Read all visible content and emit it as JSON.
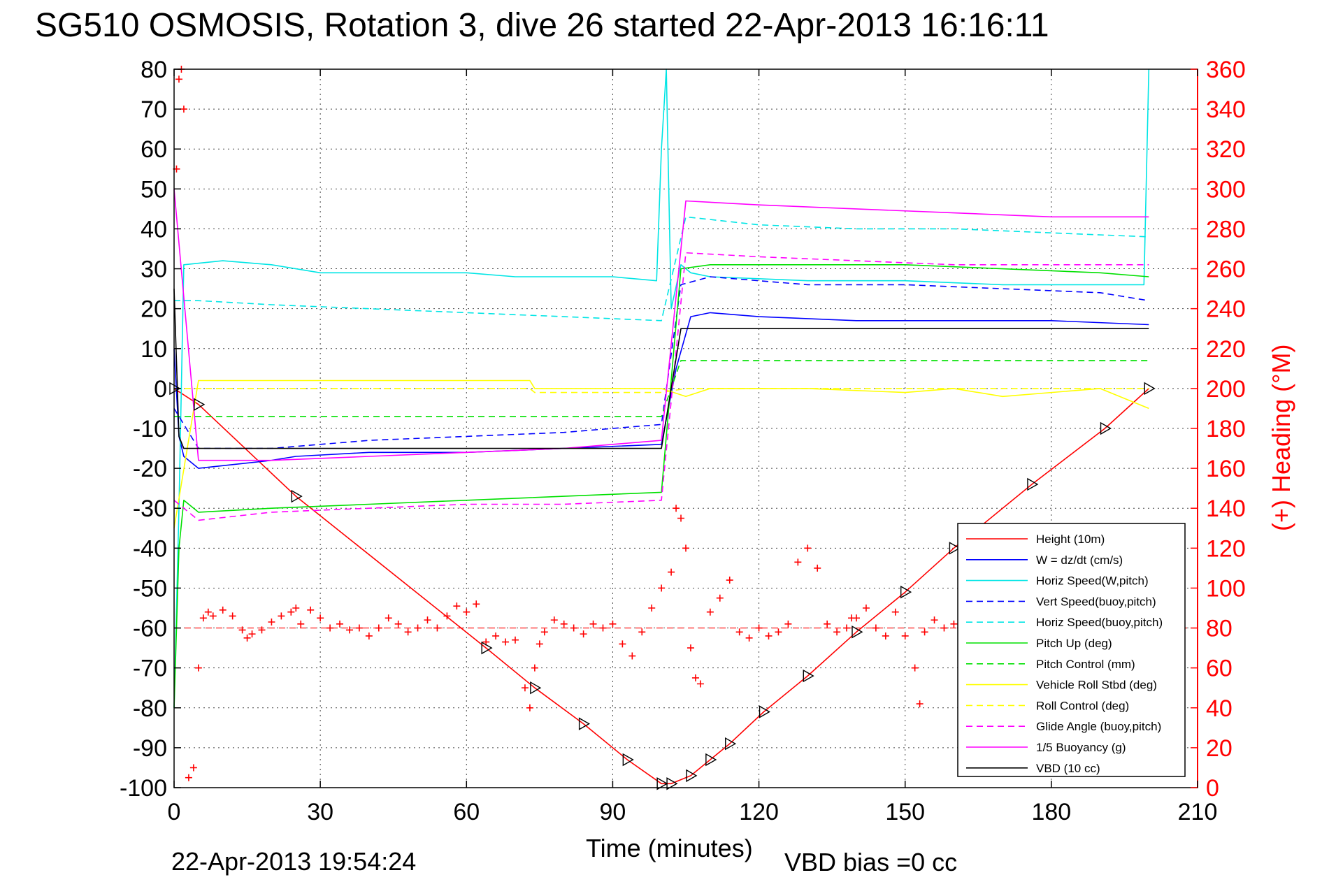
{
  "chart_data": {
    "type": "line",
    "title": "SG510 OSMOSIS, Rotation 3, dive 26 started 22-Apr-2013 16:16:11",
    "xlabel": "Time (minutes)",
    "ylabel": "",
    "y2label": "(+) Heading (°M)",
    "xlim": [
      0,
      210
    ],
    "ylim": [
      -100,
      80
    ],
    "y2lim": [
      0,
      360
    ],
    "xticks": [
      "0",
      "30",
      "60",
      "90",
      "120",
      "150",
      "180",
      "210"
    ],
    "yticks": [
      "80",
      "70",
      "60",
      "50",
      "40",
      "30",
      "20",
      "10",
      "0",
      "-10",
      "-20",
      "-30",
      "-40",
      "-50",
      "-60",
      "-70",
      "-80",
      "-90",
      "-100"
    ],
    "y2ticks": [
      "360",
      "340",
      "320",
      "300",
      "280",
      "260",
      "240",
      "220",
      "200",
      "180",
      "160",
      "140",
      "120",
      "100",
      "80",
      "60",
      "40",
      "20",
      "0"
    ],
    "grid": true,
    "legend_position": "lower-right",
    "footer_date": "22-Apr-2013 19:54:24",
    "footer_note": "VBD bias =0 cc",
    "series": [
      {
        "name": "Height (10m)",
        "color": "#ff0000",
        "style": "solid",
        "x": [
          0,
          5,
          25,
          64,
          74,
          84,
          93,
          100,
          102,
          106,
          110,
          114,
          121,
          130,
          140,
          150,
          160,
          176,
          191,
          200
        ],
        "y": [
          0,
          -4,
          -27,
          -65,
          -75,
          -84,
          -93,
          -99,
          -99,
          -97,
          -93,
          -89,
          -81,
          -72,
          -61,
          -51,
          -40,
          -24,
          -10,
          0
        ]
      },
      {
        "name": "W = dz/dt (cm/s)",
        "color": "#0000ff",
        "style": "solid",
        "x": [
          0,
          1,
          2,
          5,
          20,
          25,
          40,
          60,
          80,
          100,
          103,
          106,
          110,
          120,
          140,
          160,
          180,
          200
        ],
        "y": [
          10,
          -12,
          -17,
          -20,
          -18,
          -17,
          -16,
          -16,
          -15,
          -14,
          5,
          18,
          19,
          18,
          17,
          17,
          17,
          16
        ]
      },
      {
        "name": "Horiz Speed(W,pitch)",
        "color": "#00e5e5",
        "style": "solid",
        "x": [
          0,
          1,
          2,
          10,
          20,
          30,
          50,
          60,
          70,
          80,
          90,
          99,
          100,
          101,
          102,
          104,
          106,
          110,
          130,
          150,
          170,
          190,
          199,
          200
        ],
        "y": [
          -80,
          -30,
          31,
          32,
          31,
          29,
          29,
          29,
          28,
          28,
          28,
          27,
          60,
          80,
          20,
          31,
          29,
          28,
          27,
          27,
          26,
          26,
          26,
          80
        ]
      },
      {
        "name": "Vert Speed(buoy,pitch)",
        "color": "#0000ff",
        "style": "dashed",
        "x": [
          0,
          5,
          20,
          40,
          60,
          80,
          100,
          104,
          110,
          130,
          150,
          170,
          190,
          200
        ],
        "y": [
          -5,
          -15,
          -15,
          -13,
          -12,
          -11,
          -9,
          26,
          28,
          26,
          26,
          25,
          24,
          22
        ]
      },
      {
        "name": "Horiz Speed(buoy,pitch)",
        "color": "#00e5e5",
        "style": "dashed",
        "x": [
          0,
          5,
          20,
          40,
          60,
          80,
          100,
          105,
          120,
          140,
          160,
          180,
          200
        ],
        "y": [
          22,
          22,
          21,
          20,
          19,
          18,
          17,
          43,
          41,
          40,
          40,
          39,
          38
        ]
      },
      {
        "name": "Pitch Up (deg)",
        "color": "#00e000",
        "style": "solid",
        "x": [
          0,
          1,
          2,
          5,
          20,
          40,
          60,
          80,
          100,
          104,
          110,
          130,
          150,
          170,
          190,
          200
        ],
        "y": [
          -80,
          -40,
          -28,
          -31,
          -30,
          -29,
          -28,
          -27,
          -26,
          30,
          31,
          31,
          31,
          30,
          29,
          28
        ]
      },
      {
        "name": "Pitch Control (mm)",
        "color": "#00e000",
        "style": "dashed",
        "x": [
          0,
          5,
          100,
          104,
          200
        ],
        "y": [
          -7,
          -7,
          -7,
          7,
          7
        ]
      },
      {
        "name": "Vehicle Roll Stbd (deg)",
        "color": "#ffff00",
        "style": "solid",
        "x": [
          0,
          5,
          25,
          50,
          73,
          74,
          100,
          105,
          110,
          130,
          150,
          160,
          170,
          190,
          200
        ],
        "y": [
          -35,
          2,
          2,
          2,
          2,
          0,
          0,
          -2,
          0,
          0,
          -1,
          0,
          -2,
          0,
          -5
        ]
      },
      {
        "name": "Roll Control (deg)",
        "color": "#ffff00",
        "style": "dashed",
        "x": [
          0,
          5,
          73,
          74,
          100,
          105,
          200
        ],
        "y": [
          0,
          0,
          0,
          -1,
          -1,
          0,
          0
        ]
      },
      {
        "name": "Glide Angle (buoy,pitch)",
        "color": "#ff00ff",
        "style": "dashed",
        "x": [
          0,
          5,
          20,
          40,
          60,
          80,
          100,
          105,
          120,
          140,
          160,
          180,
          200
        ],
        "y": [
          -28,
          -33,
          -31,
          -30,
          -29,
          -29,
          -28,
          34,
          33,
          32,
          31,
          31,
          31
        ]
      },
      {
        "name": "1/5 Buoyancy (g)",
        "color": "#ff00ff",
        "style": "solid",
        "x": [
          0,
          5,
          20,
          40,
          60,
          80,
          100,
          105,
          120,
          140,
          160,
          180,
          200
        ],
        "y": [
          50,
          -18,
          -18,
          -17,
          -16,
          -15,
          -13,
          47,
          46,
          45,
          44,
          43,
          43
        ]
      },
      {
        "name": "VBD (10 cc)",
        "color": "#000000",
        "style": "solid",
        "x": [
          0,
          1,
          2,
          100,
          104,
          200
        ],
        "y": [
          25,
          -12,
          -15,
          -15,
          15,
          15
        ]
      }
    ],
    "heading": {
      "name": "(+) Heading",
      "color": "#ff0000",
      "marker": "+",
      "mean": 80,
      "x": [
        0.5,
        1,
        1.5,
        2,
        3,
        4,
        5,
        6,
        7,
        8,
        10,
        12,
        14,
        15,
        16,
        18,
        20,
        22,
        24,
        25,
        26,
        28,
        30,
        32,
        34,
        36,
        38,
        40,
        42,
        44,
        46,
        48,
        50,
        52,
        54,
        56,
        58,
        60,
        62,
        64,
        66,
        68,
        70,
        72,
        73,
        74,
        75,
        76,
        78,
        80,
        82,
        84,
        86,
        88,
        90,
        92,
        94,
        96,
        98,
        100,
        102,
        103,
        104,
        105,
        106,
        107,
        108,
        110,
        112,
        114,
        116,
        118,
        120,
        122,
        124,
        126,
        128,
        130,
        132,
        134,
        136,
        138,
        139,
        140,
        142,
        144,
        146,
        148,
        150,
        152,
        153,
        154,
        156,
        158,
        160
      ],
      "y": [
        310,
        355,
        360,
        340,
        5,
        10,
        60,
        85,
        88,
        86,
        89,
        86,
        79,
        75,
        77,
        79,
        83,
        86,
        88,
        90,
        82,
        89,
        85,
        80,
        82,
        79,
        80,
        76,
        80,
        85,
        82,
        78,
        80,
        84,
        80,
        86,
        91,
        88,
        92,
        73,
        76,
        73,
        74,
        50,
        40,
        60,
        72,
        78,
        84,
        82,
        80,
        77,
        82,
        80,
        82,
        72,
        66,
        78,
        90,
        100,
        108,
        140,
        135,
        120,
        70,
        55,
        52,
        88,
        95,
        104,
        78,
        75,
        80,
        76,
        78,
        82,
        113,
        120,
        110,
        82,
        78,
        80,
        85,
        85,
        90,
        80,
        76,
        88,
        76,
        60,
        42,
        78,
        84,
        80,
        82
      ]
    }
  }
}
